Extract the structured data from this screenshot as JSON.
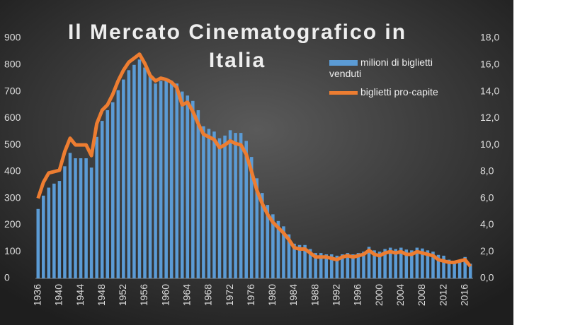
{
  "chart_data": {
    "type": "bar_line",
    "title": "Il Mercato Cinematografico in Italia",
    "categories": [
      "1936",
      null,
      null,
      null,
      "1940",
      null,
      null,
      null,
      "1944",
      null,
      null,
      null,
      "1948",
      null,
      null,
      null,
      "1952",
      null,
      null,
      null,
      "1956",
      null,
      null,
      null,
      "1960",
      null,
      null,
      null,
      "1964",
      null,
      null,
      null,
      "1968",
      null,
      null,
      null,
      "1972",
      null,
      null,
      null,
      "1976",
      null,
      null,
      null,
      "1980",
      null,
      null,
      null,
      "1984",
      null,
      null,
      null,
      "1988",
      null,
      null,
      null,
      "1992",
      null,
      null,
      null,
      "1996",
      null,
      null,
      null,
      "2000",
      null,
      null,
      null,
      "2004",
      null,
      null,
      null,
      "2008",
      null,
      null,
      null,
      "2012",
      null,
      null,
      null,
      "2016",
      null
    ],
    "series": [
      {
        "name": "milioni di biglietti venduti",
        "color": "#5b9bd5",
        "type": "bar",
        "values": [
          260,
          310,
          340,
          355,
          365,
          420,
          470,
          450,
          450,
          450,
          415,
          530,
          590,
          630,
          660,
          705,
          745,
          780,
          800,
          820,
          790,
          760,
          730,
          740,
          745,
          740,
          730,
          700,
          685,
          665,
          630,
          570,
          560,
          550,
          525,
          535,
          555,
          545,
          545,
          515,
          455,
          375,
          320,
          275,
          240,
          215,
          195,
          165,
          130,
          125,
          125,
          110,
          95,
          95,
          90,
          90,
          85,
          90,
          95,
          90,
          95,
          100,
          118,
          105,
          100,
          110,
          115,
          110,
          115,
          108,
          105,
          115,
          112,
          105,
          100,
          88,
          85,
          70,
          65,
          70,
          80,
          55
        ]
      },
      {
        "name": "biglietti pro-capite",
        "color": "#ed7d31",
        "type": "line",
        "axis": "y2",
        "values": [
          6.0,
          7.2,
          7.9,
          8.0,
          8.1,
          9.5,
          10.5,
          10.0,
          10.0,
          10.0,
          9.2,
          11.6,
          12.6,
          13.0,
          13.8,
          14.8,
          15.6,
          16.2,
          16.5,
          16.8,
          16.1,
          15.2,
          14.8,
          15.0,
          14.9,
          14.7,
          14.3,
          13.0,
          13.2,
          12.5,
          11.6,
          10.8,
          10.6,
          10.4,
          9.8,
          10.0,
          10.3,
          10.1,
          10.0,
          9.3,
          8.0,
          6.6,
          5.6,
          4.8,
          4.2,
          3.8,
          3.4,
          2.9,
          2.3,
          2.2,
          2.2,
          1.9,
          1.6,
          1.6,
          1.6,
          1.5,
          1.4,
          1.6,
          1.7,
          1.6,
          1.7,
          1.8,
          2.1,
          1.8,
          1.7,
          1.9,
          2.0,
          1.9,
          2.0,
          1.8,
          1.8,
          2.0,
          1.9,
          1.8,
          1.7,
          1.4,
          1.3,
          1.2,
          1.2,
          1.3,
          1.4,
          0.9
        ]
      }
    ],
    "ylim": [
      0,
      900
    ],
    "yticks": [
      0,
      100,
      200,
      300,
      400,
      500,
      600,
      700,
      800,
      900
    ],
    "y2lim": [
      0,
      18
    ],
    "y2ticks": [
      {
        "value": 0,
        "label": "0,0"
      },
      {
        "value": 2,
        "label": "2,0"
      },
      {
        "value": 4,
        "label": "4,0"
      },
      {
        "value": 6,
        "label": "6,0"
      },
      {
        "value": 8,
        "label": "8,0"
      },
      {
        "value": 10,
        "label": "10,0"
      },
      {
        "value": 12,
        "label": "12,0"
      },
      {
        "value": 14,
        "label": "14,0"
      },
      {
        "value": 16,
        "label": "16,0"
      },
      {
        "value": 18,
        "label": "18,0"
      }
    ]
  }
}
